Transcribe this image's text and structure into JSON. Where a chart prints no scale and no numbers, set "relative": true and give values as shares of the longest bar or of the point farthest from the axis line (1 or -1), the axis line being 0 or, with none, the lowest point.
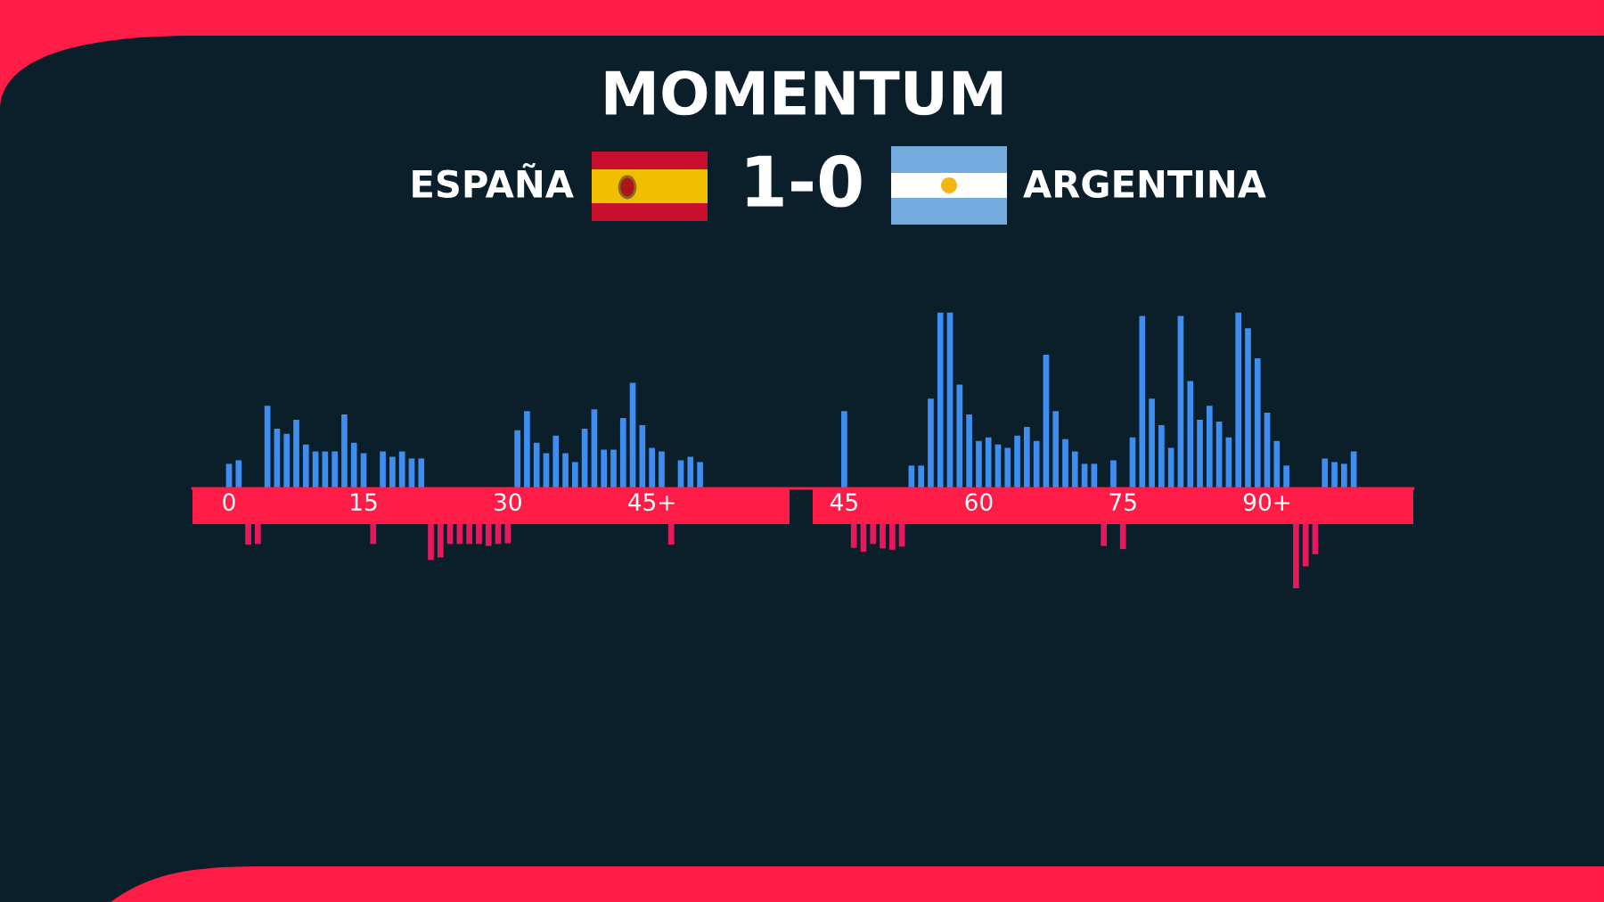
{
  "chart_data": [
    {
      "type": "bar",
      "title": "MOMENTUM",
      "annotations": [
        "ESPAÑA",
        "1-0",
        "ARGENTINA"
      ],
      "relative": true,
      "categories": [
        "0",
        null,
        null,
        null,
        null,
        null,
        null,
        null,
        null,
        null,
        null,
        null,
        null,
        null,
        "15",
        null,
        null,
        null,
        null,
        null,
        null,
        null,
        null,
        null,
        null,
        null,
        null,
        null,
        null,
        "30",
        null,
        null,
        null,
        null,
        null,
        null,
        null,
        null,
        null,
        null,
        null,
        null,
        null,
        null,
        "45+",
        null,
        null,
        null,
        null,
        null,
        null,
        null,
        null,
        null,
        null,
        null,
        null,
        null,
        null,
        null,
        null,
        null,
        null,
        null,
        "45",
        null,
        null,
        null,
        null,
        null,
        null,
        null,
        null,
        null,
        null,
        null,
        null,
        null,
        "60",
        null,
        null,
        null,
        null,
        null,
        null,
        null,
        null,
        null,
        null,
        null,
        null,
        null,
        null,
        "75",
        null,
        null,
        null,
        null,
        null,
        null,
        null,
        null,
        null,
        null,
        null,
        null,
        null,
        null,
        "90+",
        null,
        null,
        null,
        null,
        null,
        null,
        null,
        null,
        null
      ],
      "series": [
        {
          "color": "#3d8ef0",
          "values": [
            0.14,
            0.16,
            null,
            null,
            0.47,
            0.34,
            0.31,
            0.39,
            0.25,
            0.21,
            0.21,
            0.21,
            0.42,
            0.26,
            0.2,
            null,
            0.21,
            0.18,
            0.21,
            0.17,
            0.17,
            null,
            null,
            null,
            null,
            null,
            null,
            null,
            null,
            null,
            0.33,
            0.44,
            0.26,
            0.2,
            0.3,
            0.2,
            0.15,
            0.34,
            0.45,
            0.22,
            0.22,
            0.4,
            0.6,
            0.36,
            0.23,
            0.21,
            null,
            0.16,
            0.18,
            0.15,
            null,
            null,
            null,
            null,
            null,
            null,
            null,
            null,
            null,
            null,
            null,
            null,
            null,
            null,
            0.44,
            null,
            null,
            null,
            null,
            null,
            null,
            0.13,
            0.13,
            0.51,
            1,
            1,
            0.59,
            0.42,
            0.27,
            0.29,
            0.25,
            0.23,
            0.3,
            0.35,
            0.27,
            0.76,
            0.44,
            0.28,
            0.21,
            0.14,
            0.14,
            null,
            0.16,
            null,
            0.29,
            0.98,
            0.51,
            0.36,
            0.23,
            0.98,
            0.61,
            0.39,
            0.47,
            0.38,
            0.29,
            1,
            0.91,
            0.74,
            0.43,
            0.27,
            0.13,
            null,
            null,
            null,
            0.17,
            0.15,
            0.14,
            0.21
          ]
        }
      ]
    },
    {
      "type": "bar",
      "relative": true,
      "categories": [
        null,
        null,
        null,
        null,
        null,
        null,
        null,
        null,
        null,
        null,
        null,
        null,
        null,
        null,
        null,
        null,
        null,
        null,
        null,
        null,
        null,
        null,
        null,
        null,
        null,
        null,
        null,
        null,
        null,
        null,
        null,
        null,
        null,
        null,
        null,
        null,
        null,
        null,
        null,
        null,
        null,
        null,
        null,
        null,
        null,
        null,
        null,
        null,
        null,
        null,
        null,
        null,
        null,
        null,
        null,
        null,
        null,
        null,
        null,
        null,
        null,
        null,
        null,
        null,
        null,
        null,
        null,
        null,
        null,
        null,
        null,
        null,
        null,
        null,
        null,
        null,
        null,
        null,
        null,
        null,
        null,
        null,
        null,
        null,
        null,
        null,
        null,
        null,
        null,
        null,
        null,
        null,
        null,
        null,
        null,
        null,
        null,
        null,
        null,
        null,
        null,
        null,
        null,
        null,
        null,
        null,
        null,
        null,
        null,
        null,
        null,
        null,
        null,
        null,
        null,
        null,
        null,
        null
      ],
      "series": [
        {
          "color": "#e8185c",
          "values": [
            null,
            null,
            -0.32,
            -0.31,
            null,
            null,
            null,
            null,
            null,
            null,
            null,
            null,
            null,
            null,
            null,
            -0.31,
            null,
            null,
            null,
            null,
            null,
            -0.56,
            -0.52,
            -0.31,
            -0.31,
            -0.31,
            -0.31,
            -0.34,
            -0.31,
            -0.3,
            null,
            null,
            null,
            null,
            null,
            null,
            null,
            null,
            null,
            null,
            null,
            null,
            null,
            null,
            null,
            null,
            -0.32,
            null,
            null,
            null,
            null,
            null,
            null,
            null,
            null,
            null,
            null,
            null,
            null,
            null,
            null,
            null,
            null,
            null,
            null,
            -0.37,
            -0.43,
            -0.31,
            -0.38,
            -0.4,
            -0.35,
            null,
            null,
            null,
            null,
            null,
            null,
            null,
            null,
            null,
            null,
            null,
            null,
            null,
            null,
            null,
            null,
            null,
            null,
            null,
            null,
            -0.34,
            null,
            -0.39,
            null,
            null,
            null,
            null,
            null,
            null,
            null,
            null,
            null,
            null,
            null,
            null,
            null,
            null,
            null,
            null,
            null,
            -1,
            -0.66,
            -0.47,
            null,
            null,
            null,
            null
          ]
        }
      ]
    }
  ]
}
